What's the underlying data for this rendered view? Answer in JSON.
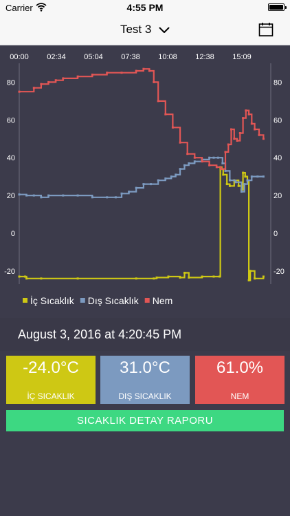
{
  "status_bar": {
    "carrier": "Carrier",
    "time": "4:55 PM"
  },
  "nav": {
    "title": "Test 3",
    "chevron_icon": "chevron-down-icon",
    "calendar_icon": "calendar-icon"
  },
  "colors": {
    "ic": "#cec814",
    "dis": "#7c9ac0",
    "nem": "#e25655",
    "report": "#3dd882",
    "background": "#3c3b4b"
  },
  "chart_data": {
    "type": "line",
    "x_tick_labels": [
      "00:00",
      "02:34",
      "05:04",
      "07:38",
      "10:08",
      "12:38",
      "15:09"
    ],
    "y_ticks": [
      80,
      60,
      40,
      20,
      0,
      -20
    ],
    "ylim": [
      -27,
      90
    ],
    "xlim": [
      0,
      17.2
    ],
    "legend": [
      "İç Sıcaklık",
      "Dış Sıcaklık",
      "Nem"
    ],
    "legend_position": "bottom-left",
    "series": [
      {
        "name": "İç Sıcaklık",
        "color": "#cec814",
        "points": [
          [
            0,
            -23
          ],
          [
            0.4,
            -23
          ],
          [
            0.5,
            -24
          ],
          [
            1.5,
            -24
          ],
          [
            4,
            -24
          ],
          [
            8,
            -24
          ],
          [
            9.2,
            -24
          ],
          [
            9.4,
            -23.5
          ],
          [
            10.2,
            -23
          ],
          [
            11,
            -23.5
          ],
          [
            11.3,
            -21
          ],
          [
            11.6,
            -23.5
          ],
          [
            12.5,
            -23
          ],
          [
            13.3,
            -23
          ],
          [
            13.7,
            -23
          ],
          [
            13.75,
            35
          ],
          [
            13.85,
            34
          ],
          [
            13.95,
            31
          ],
          [
            14.2,
            26
          ],
          [
            14.4,
            25
          ],
          [
            14.7,
            28
          ],
          [
            15,
            25
          ],
          [
            15.2,
            23
          ],
          [
            15.3,
            32
          ],
          [
            15.45,
            30
          ],
          [
            15.6,
            28
          ],
          [
            15.7,
            -25
          ],
          [
            15.8,
            -20
          ],
          [
            16.1,
            -24
          ],
          [
            16.7,
            -23
          ]
        ]
      },
      {
        "name": "Dış Sıcaklık",
        "color": "#7c9ac0",
        "points": [
          [
            0,
            20.5
          ],
          [
            0.5,
            20
          ],
          [
            1,
            20
          ],
          [
            1.5,
            19
          ],
          [
            2,
            20
          ],
          [
            3,
            20
          ],
          [
            4,
            20
          ],
          [
            5,
            19
          ],
          [
            6,
            19
          ],
          [
            6.6,
            19
          ],
          [
            7,
            21
          ],
          [
            7.5,
            22
          ],
          [
            8,
            24
          ],
          [
            8.5,
            26
          ],
          [
            9,
            26
          ],
          [
            9.5,
            28
          ],
          [
            10,
            29
          ],
          [
            10.4,
            30
          ],
          [
            10.7,
            31
          ],
          [
            11,
            34
          ],
          [
            11.3,
            36
          ],
          [
            11.6,
            37
          ],
          [
            12,
            38
          ],
          [
            12.5,
            39
          ],
          [
            13,
            40
          ],
          [
            13.3,
            40
          ],
          [
            13.6,
            40
          ],
          [
            13.9,
            37
          ],
          [
            14.1,
            33
          ],
          [
            14.4,
            28
          ],
          [
            14.8,
            27
          ],
          [
            15.2,
            22
          ],
          [
            15.4,
            26
          ],
          [
            15.6,
            28
          ],
          [
            15.9,
            30
          ],
          [
            16.3,
            30
          ],
          [
            16.7,
            30
          ]
        ]
      },
      {
        "name": "Nem",
        "color": "#e25655",
        "points": [
          [
            0,
            75
          ],
          [
            1,
            77
          ],
          [
            1.5,
            79
          ],
          [
            2,
            80
          ],
          [
            2.5,
            81
          ],
          [
            3,
            82
          ],
          [
            4,
            83
          ],
          [
            5,
            84
          ],
          [
            6,
            85
          ],
          [
            7,
            85
          ],
          [
            8,
            86
          ],
          [
            8.5,
            87
          ],
          [
            8.9,
            86
          ],
          [
            9.2,
            80
          ],
          [
            9.5,
            70
          ],
          [
            10,
            63
          ],
          [
            10.5,
            56
          ],
          [
            11,
            48
          ],
          [
            11.5,
            42
          ],
          [
            12,
            40
          ],
          [
            12.5,
            38
          ],
          [
            13,
            36
          ],
          [
            13.5,
            35
          ],
          [
            13.8,
            34
          ],
          [
            14.1,
            43
          ],
          [
            14.3,
            47
          ],
          [
            14.5,
            55
          ],
          [
            14.7,
            50
          ],
          [
            14.9,
            49
          ],
          [
            15.1,
            53
          ],
          [
            15.3,
            61
          ],
          [
            15.5,
            65
          ],
          [
            15.7,
            63
          ],
          [
            15.9,
            58
          ],
          [
            16.1,
            55
          ],
          [
            16.4,
            52
          ],
          [
            16.7,
            50
          ]
        ]
      }
    ]
  },
  "reading": {
    "datetime": "August 3, 2016 at 4:20:45 PM",
    "ic": {
      "value": "-24.0°C",
      "label": "İÇ SICAKLIK"
    },
    "dis": {
      "value": "31.0°C",
      "label": "DIŞ SICAKLIK"
    },
    "nem": {
      "value": "61.0%",
      "label": "NEM"
    }
  },
  "report_button": "SICAKLIK DETAY RAPORU"
}
